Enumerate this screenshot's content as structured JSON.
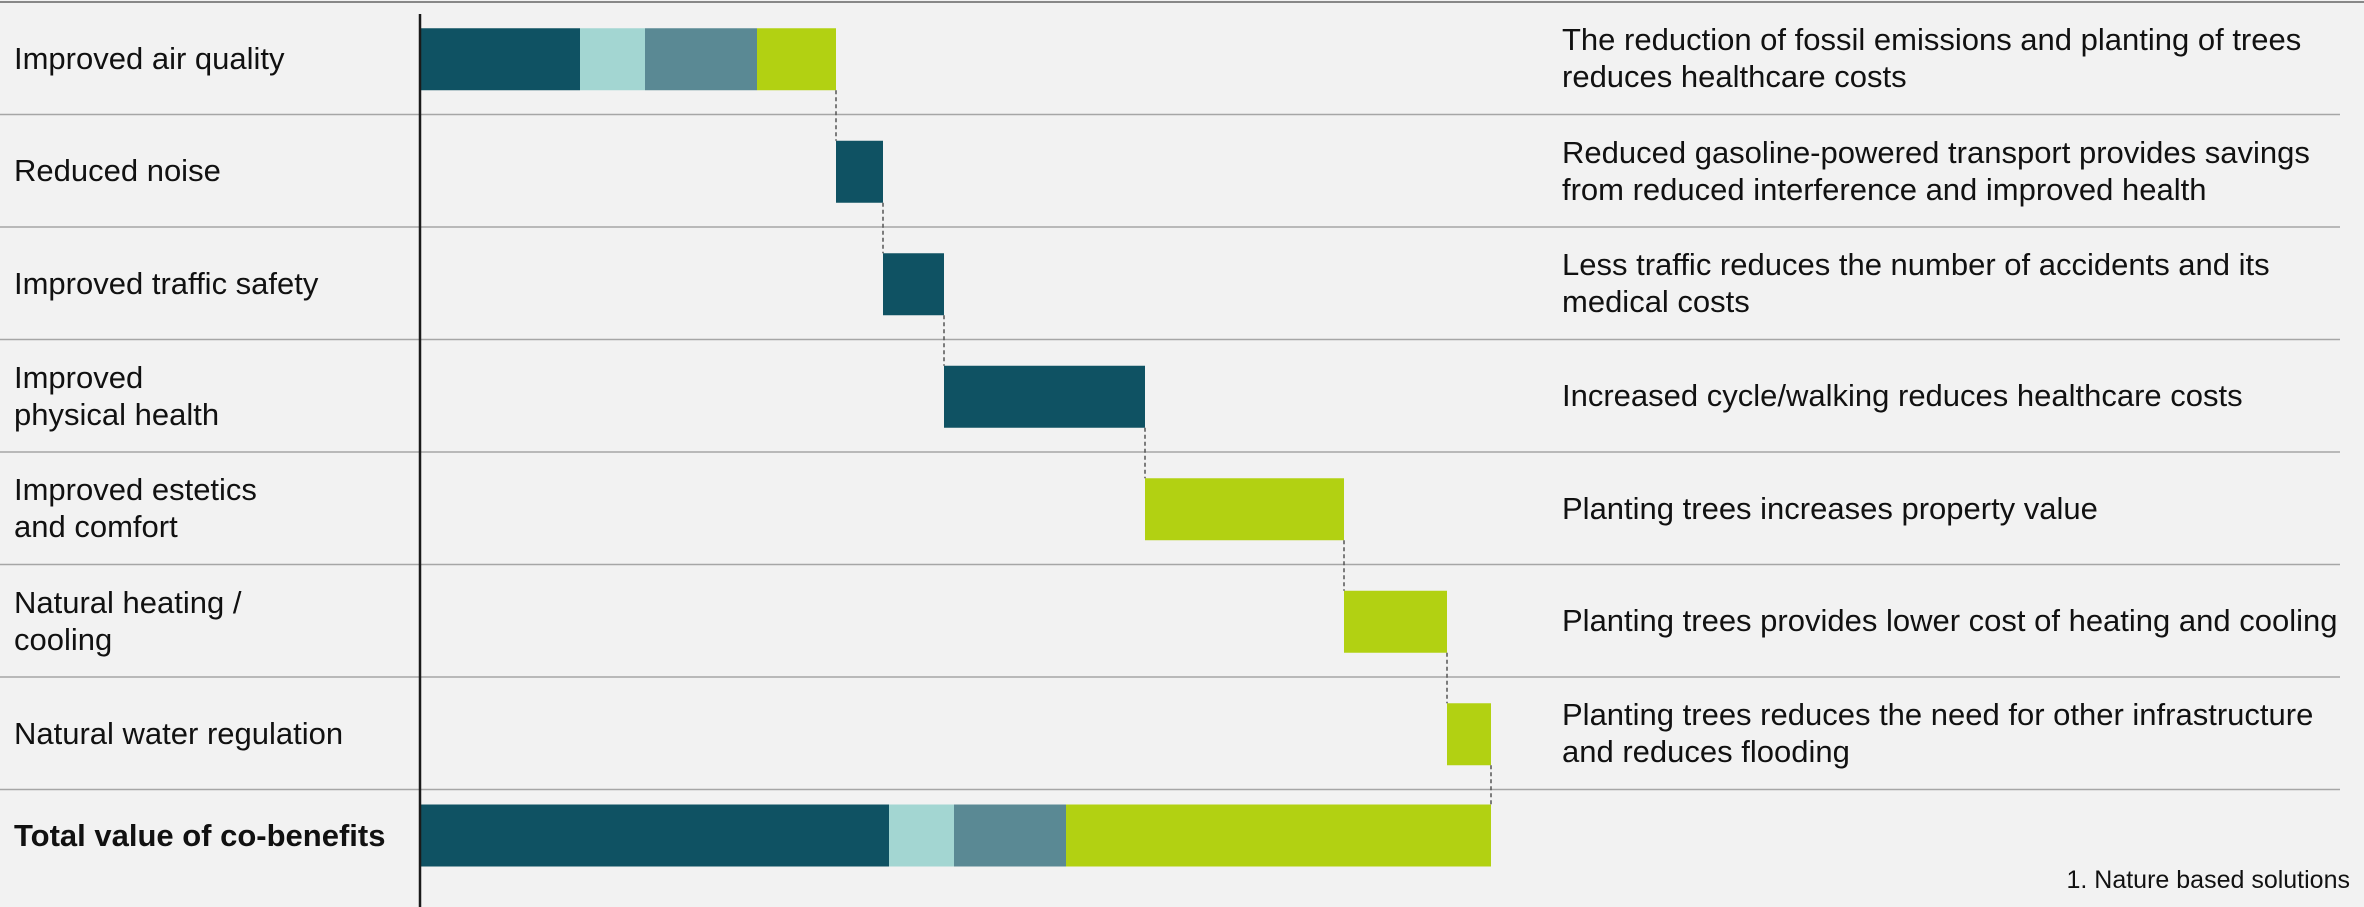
{
  "colors": {
    "dark_teal": "#0f5263",
    "light_teal": "#a3d6d2",
    "mid_teal": "#5a8994",
    "lime": "#b2d112",
    "divider": "#a6a6a6",
    "axis": "#1a1a1a"
  },
  "chart_data": {
    "type": "waterfall",
    "rows": [
      {
        "label": "Improved air quality",
        "description": "The reduction of fossil emissions and planting of trees reduces healthcare costs",
        "segments": [
          {
            "color_key": "dark_teal",
            "value": 160
          },
          {
            "color_key": "light_teal",
            "value": 65
          },
          {
            "color_key": "mid_teal",
            "value": 112
          },
          {
            "color_key": "lime",
            "value": 79
          }
        ]
      },
      {
        "label": "Reduced noise",
        "description": "Reduced gasoline-powered transport provides savings from reduced interference and improved health",
        "segments": [
          {
            "color_key": "dark_teal",
            "value": 47
          }
        ]
      },
      {
        "label": "Improved traffic safety",
        "description": "Less traffic reduces the number of accidents and its medical costs",
        "segments": [
          {
            "color_key": "dark_teal",
            "value": 61
          }
        ]
      },
      {
        "label": "Improved\nphysical health",
        "description": "Increased cycle/walking reduces healthcare costs",
        "segments": [
          {
            "color_key": "dark_teal",
            "value": 201
          }
        ]
      },
      {
        "label": "Improved estetics\nand comfort",
        "description": "Planting trees increases property value",
        "segments": [
          {
            "color_key": "lime",
            "value": 199
          }
        ]
      },
      {
        "label": "Natural heating /\ncooling",
        "description": "Planting trees provides lower cost of heating and cooling",
        "segments": [
          {
            "color_key": "lime",
            "value": 103
          }
        ]
      },
      {
        "label": "Natural water regulation",
        "description": "Planting trees reduces the need for other infrastructure and reduces flooding",
        "segments": [
          {
            "color_key": "lime",
            "value": 44
          }
        ]
      }
    ],
    "total": {
      "label": "Total value of co-benefits",
      "segments": [
        {
          "color_key": "dark_teal",
          "value": 469
        },
        {
          "color_key": "light_teal",
          "value": 65
        },
        {
          "color_key": "mid_teal",
          "value": 112
        },
        {
          "color_key": "lime",
          "value": 425
        }
      ]
    },
    "footnote": "1. Nature based solutions"
  }
}
